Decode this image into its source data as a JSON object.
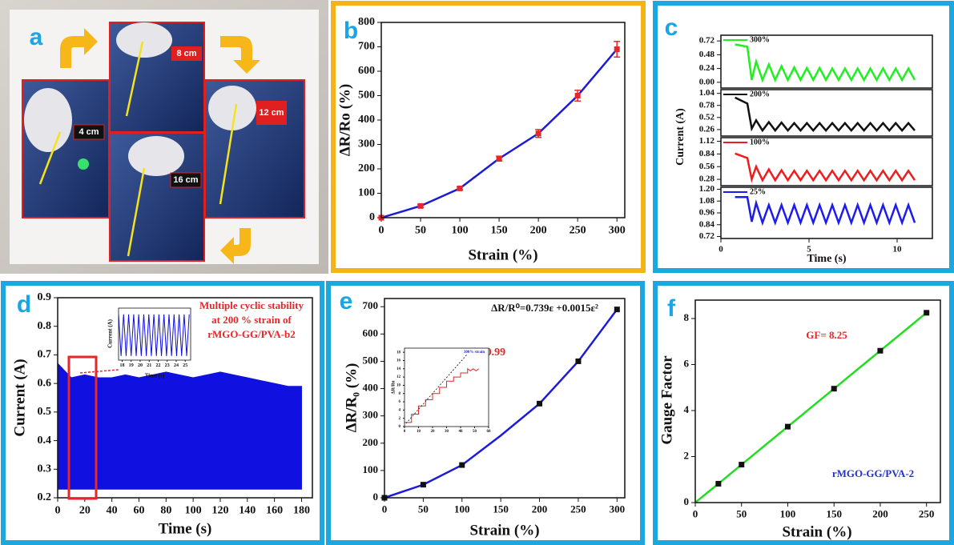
{
  "photo_panel": {
    "label": "a",
    "length_labels": [
      "4 cm",
      "8 cm",
      "12 cm",
      "16 cm"
    ]
  },
  "chart_data": [
    {
      "type": "line",
      "panel_label": "b",
      "x_label": "Strain (%)",
      "y_label": "ΔR/Ro (%)",
      "x": [
        0,
        50,
        100,
        150,
        200,
        250,
        300
      ],
      "xlim": [
        0,
        310
      ],
      "ylim": [
        0,
        800
      ],
      "xticks": [
        0,
        50,
        100,
        150,
        200,
        250,
        300
      ],
      "yticks": [
        0,
        100,
        200,
        300,
        400,
        500,
        600,
        700,
        800
      ],
      "series": [
        {
          "color": "#1c1cd6",
          "values": [
            0,
            48,
            120,
            242,
            345,
            500,
            690
          ],
          "errors": [
            0,
            6,
            6,
            10,
            16,
            22,
            32
          ],
          "error_color": "#e8262a",
          "marker": "square",
          "marker_color": "#e8262a"
        }
      ]
    },
    {
      "type": "line",
      "panel_label": "c",
      "x": [
        0.8,
        1.5,
        1.75,
        2.0,
        2.36,
        2.72,
        3.08,
        3.44,
        3.8,
        4.16,
        4.52,
        4.88,
        5.24,
        5.6,
        5.96,
        6.32,
        6.68,
        7.04,
        7.4,
        7.76,
        8.12,
        8.48,
        8.84,
        9.2,
        9.56,
        9.92,
        10.28,
        10.64,
        11.0
      ],
      "xlim": [
        0,
        12
      ],
      "ylim": [
        -0.1,
        0.82
      ],
      "yticks": [
        {
          "value": 0,
          "label": "0.00"
        },
        0.24,
        0.48,
        0.72
      ],
      "series": [
        {
          "name": "300%",
          "color": "#22ee22",
          "values": [
            0.66,
            0.62,
            0.04,
            0.36,
            0.04,
            0.31,
            0.04,
            0.28,
            0.04,
            0.26,
            0.04,
            0.25,
            0.04,
            0.25,
            0.04,
            0.24,
            0.04,
            0.24,
            0.04,
            0.24,
            0.04,
            0.24,
            0.04,
            0.24,
            0.04,
            0.24,
            0.04,
            0.24,
            0.04
          ]
        }
      ]
    },
    {
      "type": "line",
      "x": [
        0.8,
        1.5,
        1.75,
        2.0,
        2.36,
        2.72,
        3.08,
        3.44,
        3.8,
        4.16,
        4.52,
        4.88,
        5.24,
        5.6,
        5.96,
        6.32,
        6.68,
        7.04,
        7.4,
        7.76,
        8.12,
        8.48,
        8.84,
        9.2,
        9.56,
        9.92,
        10.28,
        10.64,
        11.0
      ],
      "xlim": [
        0,
        12
      ],
      "ylim": [
        0.12,
        1.12
      ],
      "yticks": [
        0.26,
        0.52,
        0.78,
        1.04
      ],
      "series": [
        {
          "name": "200%",
          "color": "#111111",
          "values": [
            0.95,
            0.82,
            0.28,
            0.46,
            0.24,
            0.42,
            0.24,
            0.41,
            0.24,
            0.4,
            0.24,
            0.4,
            0.24,
            0.4,
            0.24,
            0.4,
            0.24,
            0.4,
            0.24,
            0.4,
            0.24,
            0.4,
            0.24,
            0.4,
            0.24,
            0.4,
            0.24,
            0.4,
            0.24
          ]
        }
      ]
    },
    {
      "type": "line",
      "x": [
        0.8,
        1.5,
        1.75,
        2.0,
        2.36,
        2.72,
        3.08,
        3.44,
        3.8,
        4.16,
        4.52,
        4.88,
        5.24,
        5.6,
        5.96,
        6.32,
        6.68,
        7.04,
        7.4,
        7.76,
        8.12,
        8.48,
        8.84,
        9.2,
        9.56,
        9.92,
        10.28,
        10.64,
        11.0
      ],
      "xlim": [
        0,
        12
      ],
      "ylim": [
        0.14,
        1.2
      ],
      "yticks": [
        0.28,
        0.56,
        0.84,
        1.12
      ],
      "series": [
        {
          "name": "100%",
          "color": "#ee1c1c",
          "values": [
            0.85,
            0.75,
            0.28,
            0.56,
            0.26,
            0.5,
            0.26,
            0.48,
            0.26,
            0.47,
            0.26,
            0.47,
            0.26,
            0.47,
            0.26,
            0.47,
            0.26,
            0.47,
            0.26,
            0.47,
            0.26,
            0.47,
            0.26,
            0.47,
            0.26,
            0.47,
            0.26,
            0.47,
            0.26
          ]
        }
      ]
    },
    {
      "type": "line",
      "x_label": "Time (s)",
      "y_label": "Current (A)",
      "x": [
        0.8,
        1.5,
        1.75,
        2.0,
        2.36,
        2.72,
        3.08,
        3.44,
        3.8,
        4.16,
        4.52,
        4.88,
        5.24,
        5.6,
        5.96,
        6.32,
        6.68,
        7.04,
        7.4,
        7.76,
        8.12,
        8.48,
        8.84,
        9.2,
        9.56,
        9.92,
        10.28,
        10.64,
        11.0
      ],
      "xlim": [
        0,
        12
      ],
      "ylim": [
        0.7,
        1.22
      ],
      "xticks": [
        0,
        5,
        10
      ],
      "yticks": [
        0.72,
        0.84,
        0.96,
        1.08,
        {
          "value": 1.2,
          "label": "1.20"
        }
      ],
      "series": [
        {
          "name": "25%",
          "color": "#1c1cee",
          "values": [
            1.12,
            1.12,
            0.87,
            1.06,
            0.86,
            1.04,
            0.86,
            1.04,
            0.86,
            1.04,
            0.86,
            1.04,
            0.86,
            1.04,
            0.86,
            1.04,
            0.86,
            1.04,
            0.86,
            1.04,
            0.86,
            1.04,
            0.86,
            1.04,
            0.86,
            1.04,
            0.86,
            1.04,
            0.86
          ]
        }
      ]
    },
    {
      "type": "area",
      "panel_label": "d",
      "x_label": "Time (s)",
      "y_label": "Current (A)",
      "x": [
        0,
        10,
        20,
        30,
        40,
        50,
        60,
        70,
        80,
        90,
        100,
        110,
        120,
        130,
        140,
        150,
        160,
        170,
        180
      ],
      "xlim": [
        0,
        188
      ],
      "ylim": [
        0.2,
        0.9
      ],
      "xticks": [
        0,
        20,
        40,
        60,
        80,
        100,
        120,
        140,
        160,
        180
      ],
      "yticks": [
        0.2,
        0.3,
        0.4,
        0.5,
        0.6,
        0.7,
        0.8,
        0.9
      ],
      "series": [
        {
          "color": "#1010e0",
          "values": [
            0.67,
            0.62,
            0.63,
            0.62,
            0.62,
            0.63,
            0.62,
            0.63,
            0.64,
            0.63,
            0.62,
            0.63,
            0.64,
            0.63,
            0.62,
            0.61,
            0.6,
            0.59,
            0.59
          ],
          "lower": [
            0.23,
            0.23,
            0.23,
            0.23,
            0.23,
            0.23,
            0.23,
            0.23,
            0.23,
            0.23,
            0.23,
            0.23,
            0.23,
            0.23,
            0.23,
            0.23,
            0.23,
            0.23,
            0.23
          ]
        }
      ],
      "annotations": [
        "Multiple cyclic stability",
        "at 200 % strain of",
        "rMGO-GG/PVA-b2"
      ]
    },
    {
      "type": "line",
      "x_label": "Time (s)",
      "y_label": "Current (A)",
      "x": [
        17.6,
        17.88,
        18.16,
        18.44,
        18.72,
        19.0,
        19.28,
        19.56,
        19.84,
        20.12,
        20.4,
        20.68,
        20.96,
        21.24,
        21.52,
        21.8,
        22.08,
        22.36,
        22.64,
        22.92,
        23.2,
        23.48,
        23.76,
        24.04,
        24.32,
        24.6,
        24.88,
        25.16,
        25.44
      ],
      "xlim": [
        17.6,
        25.6
      ],
      "ylim": [
        0.2,
        0.7
      ],
      "xticks": [
        18,
        19,
        20,
        21,
        22,
        23,
        24,
        25
      ],
      "series": [
        {
          "color": "#1010e0",
          "values": [
            0.64,
            0.24,
            0.64,
            0.24,
            0.64,
            0.24,
            0.64,
            0.24,
            0.64,
            0.24,
            0.64,
            0.24,
            0.64,
            0.24,
            0.64,
            0.24,
            0.64,
            0.24,
            0.64,
            0.24,
            0.64,
            0.24,
            0.64,
            0.24,
            0.64,
            0.24,
            0.64,
            0.24,
            0.64
          ]
        }
      ]
    },
    {
      "type": "line",
      "panel_label": "e",
      "x_label": "Strain (%)",
      "y_label": "ΔR/R₀ (%)",
      "x": [
        0,
        50,
        100,
        150,
        200,
        250,
        300
      ],
      "xlim": [
        0,
        310
      ],
      "ylim": [
        0,
        730
      ],
      "xticks": [
        0,
        50,
        100,
        150,
        200,
        250,
        300
      ],
      "yticks": [
        0,
        100,
        200,
        300,
        400,
        500,
        600,
        700
      ],
      "series": [
        {
          "color": "#1c1cd6",
          "values": [
            0,
            48,
            120,
            228,
            345,
            500,
            690
          ]
        },
        {
          "color": "#111111",
          "line": false,
          "marker": "square",
          "marker_color": "#111111",
          "values": [
            0,
            48,
            120,
            null,
            345,
            500,
            690
          ]
        }
      ],
      "annotations": [
        "ΔR/R⁰=0.739ε +0.0015ε²",
        "R²= 0.99"
      ]
    },
    {
      "type": "line",
      "y_label": "ΔR/Ro",
      "x": [
        0,
        5,
        5,
        10,
        10,
        15,
        15,
        20,
        20,
        25,
        25,
        30,
        30,
        35,
        35,
        40,
        40,
        45,
        45,
        47,
        49,
        51,
        53
      ],
      "xlim": [
        0,
        60
      ],
      "ylim": [
        0,
        19
      ],
      "xticks": [
        0,
        10,
        20,
        30,
        40,
        50,
        60
      ],
      "yticks": [
        0,
        2,
        4,
        6,
        8,
        10,
        12,
        14,
        16,
        18
      ],
      "series": [
        {
          "color": "#e8262a",
          "values": [
            1,
            1,
            3,
            3,
            5,
            5,
            6.5,
            6.5,
            8,
            8,
            9.5,
            9.5,
            11,
            11,
            12,
            12,
            13,
            13,
            14,
            13.5,
            14,
            13.5,
            14
          ]
        }
      ],
      "annotations": [
        "300% strain"
      ]
    },
    {
      "type": "line",
      "panel_label": "f",
      "x_label": "Strain (%)",
      "y_label": "Gauge Factor",
      "x": [
        0,
        25,
        50,
        100,
        150,
        200,
        250
      ],
      "xlim": [
        0,
        265
      ],
      "ylim": [
        0,
        8.8
      ],
      "xticks": [
        0,
        50,
        100,
        150,
        200,
        250
      ],
      "yticks": [
        0,
        2,
        4,
        6,
        8
      ],
      "series": [
        {
          "color": "#22dd22",
          "values": [
            0,
            0.82,
            1.65,
            3.3,
            4.95,
            6.6,
            8.25
          ]
        },
        {
          "color": "#111111",
          "line": false,
          "marker": "square",
          "marker_color": "#111111",
          "values": [
            null,
            0.82,
            1.65,
            3.3,
            4.95,
            6.6,
            8.25
          ]
        }
      ],
      "annotations": [
        "GF= 8.25",
        "rMGO-GG/PVA-2"
      ]
    }
  ]
}
